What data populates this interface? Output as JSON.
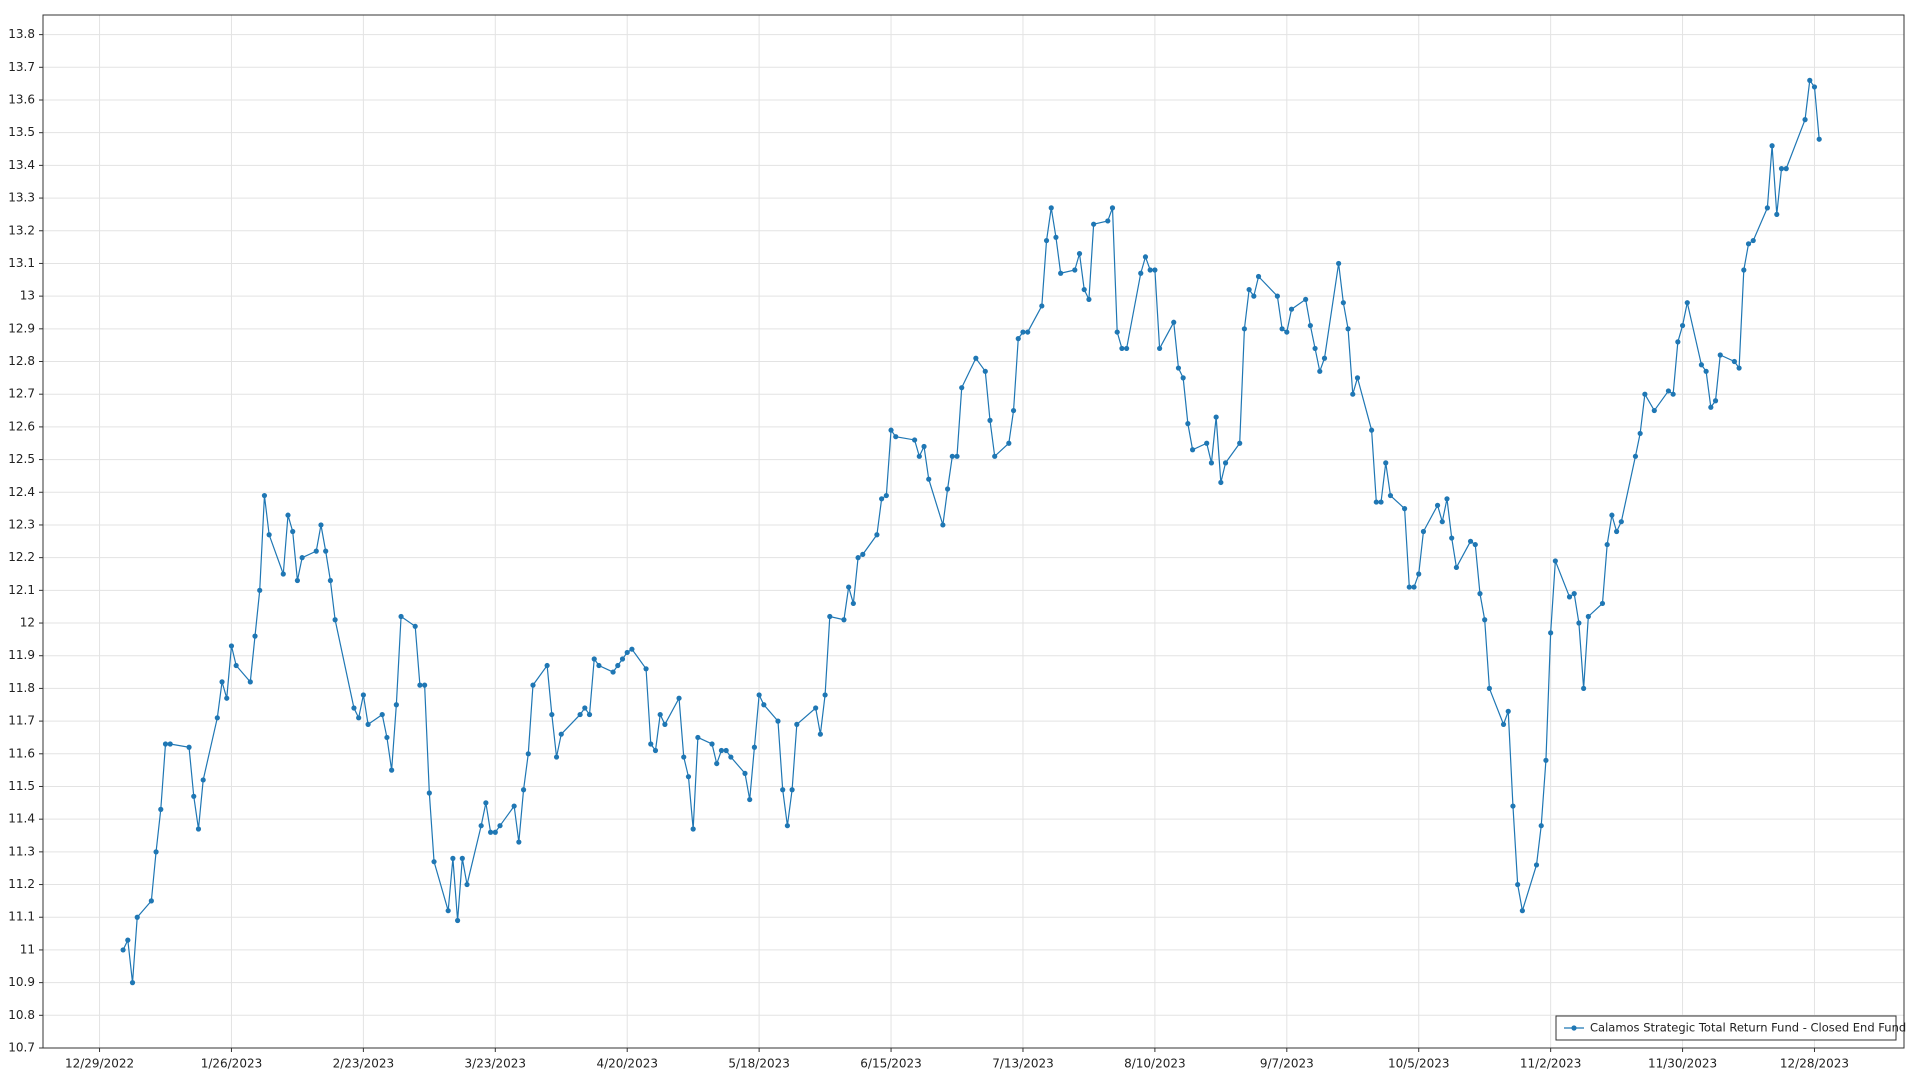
{
  "chart_data": {
    "type": "line",
    "x": [
      "1/3/2023",
      "1/4/2023",
      "1/5/2023",
      "1/6/2023",
      "1/9/2023",
      "1/10/2023",
      "1/11/2023",
      "1/12/2023",
      "1/13/2023",
      "1/17/2023",
      "1/18/2023",
      "1/19/2023",
      "1/20/2023",
      "1/23/2023",
      "1/24/2023",
      "1/25/2023",
      "1/26/2023",
      "1/27/2023",
      "1/30/2023",
      "1/31/2023",
      "2/1/2023",
      "2/2/2023",
      "2/3/2023",
      "2/6/2023",
      "2/7/2023",
      "2/8/2023",
      "2/9/2023",
      "2/10/2023",
      "2/13/2023",
      "2/14/2023",
      "2/15/2023",
      "2/16/2023",
      "2/17/2023",
      "2/21/2023",
      "2/22/2023",
      "2/23/2023",
      "2/24/2023",
      "2/27/2023",
      "2/28/2023",
      "3/1/2023",
      "3/2/2023",
      "3/3/2023",
      "3/6/2023",
      "3/7/2023",
      "3/8/2023",
      "3/9/2023",
      "3/10/2023",
      "3/13/2023",
      "3/14/2023",
      "3/15/2023",
      "3/16/2023",
      "3/17/2023",
      "3/20/2023",
      "3/21/2023",
      "3/22/2023",
      "3/23/2023",
      "3/24/2023",
      "3/27/2023",
      "3/28/2023",
      "3/29/2023",
      "3/30/2023",
      "3/31/2023",
      "4/3/2023",
      "4/4/2023",
      "4/5/2023",
      "4/6/2023",
      "4/10/2023",
      "4/11/2023",
      "4/12/2023",
      "4/13/2023",
      "4/14/2023",
      "4/17/2023",
      "4/18/2023",
      "4/19/2023",
      "4/20/2023",
      "4/21/2023",
      "4/24/2023",
      "4/25/2023",
      "4/26/2023",
      "4/27/2023",
      "4/28/2023",
      "5/1/2023",
      "5/2/2023",
      "5/3/2023",
      "5/4/2023",
      "5/5/2023",
      "5/8/2023",
      "5/9/2023",
      "5/10/2023",
      "5/11/2023",
      "5/12/2023",
      "5/15/2023",
      "5/16/2023",
      "5/17/2023",
      "5/18/2023",
      "5/19/2023",
      "5/22/2023",
      "5/23/2023",
      "5/24/2023",
      "5/25/2023",
      "5/26/2023",
      "5/30/2023",
      "5/31/2023",
      "6/1/2023",
      "6/2/2023",
      "6/5/2023",
      "6/6/2023",
      "6/7/2023",
      "6/8/2023",
      "6/9/2023",
      "6/12/2023",
      "6/13/2023",
      "6/14/2023",
      "6/15/2023",
      "6/16/2023",
      "6/20/2023",
      "6/21/2023",
      "6/22/2023",
      "6/23/2023",
      "6/26/2023",
      "6/27/2023",
      "6/28/2023",
      "6/29/2023",
      "6/30/2023",
      "7/3/2023",
      "7/5/2023",
      "7/6/2023",
      "7/7/2023",
      "7/10/2023",
      "7/11/2023",
      "7/12/2023",
      "7/13/2023",
      "7/14/2023",
      "7/17/2023",
      "7/18/2023",
      "7/19/2023",
      "7/20/2023",
      "7/21/2023",
      "7/24/2023",
      "7/25/2023",
      "7/26/2023",
      "7/27/2023",
      "7/28/2023",
      "7/31/2023",
      "8/1/2023",
      "8/2/2023",
      "8/3/2023",
      "8/4/2023",
      "8/7/2023",
      "8/8/2023",
      "8/9/2023",
      "8/10/2023",
      "8/11/2023",
      "8/14/2023",
      "8/15/2023",
      "8/16/2023",
      "8/17/2023",
      "8/18/2023",
      "8/21/2023",
      "8/22/2023",
      "8/23/2023",
      "8/24/2023",
      "8/25/2023",
      "8/28/2023",
      "8/29/2023",
      "8/30/2023",
      "8/31/2023",
      "9/1/2023",
      "9/5/2023",
      "9/6/2023",
      "9/7/2023",
      "9/8/2023",
      "9/11/2023",
      "9/12/2023",
      "9/13/2023",
      "9/14/2023",
      "9/15/2023",
      "9/18/2023",
      "9/19/2023",
      "9/20/2023",
      "9/21/2023",
      "9/22/2023",
      "9/25/2023",
      "9/26/2023",
      "9/27/2023",
      "9/28/2023",
      "9/29/2023",
      "10/2/2023",
      "10/3/2023",
      "10/4/2023",
      "10/5/2023",
      "10/6/2023",
      "10/9/2023",
      "10/10/2023",
      "10/11/2023",
      "10/12/2023",
      "10/13/2023",
      "10/16/2023",
      "10/17/2023",
      "10/18/2023",
      "10/19/2023",
      "10/20/2023",
      "10/23/2023",
      "10/24/2023",
      "10/25/2023",
      "10/26/2023",
      "10/27/2023",
      "10/30/2023",
      "10/31/2023",
      "11/1/2023",
      "11/2/2023",
      "11/3/2023",
      "11/6/2023",
      "11/7/2023",
      "11/8/2023",
      "11/9/2023",
      "11/10/2023",
      "11/13/2023",
      "11/14/2023",
      "11/15/2023",
      "11/16/2023",
      "11/17/2023",
      "11/20/2023",
      "11/21/2023",
      "11/22/2023",
      "11/24/2023",
      "11/27/2023",
      "11/28/2023",
      "11/29/2023",
      "11/30/2023",
      "12/1/2023",
      "12/4/2023",
      "12/5/2023",
      "12/6/2023",
      "12/7/2023",
      "12/8/2023",
      "12/11/2023",
      "12/12/2023",
      "12/13/2023",
      "12/14/2023",
      "12/15/2023",
      "12/18/2023",
      "12/19/2023",
      "12/20/2023",
      "12/21/2023",
      "12/22/2023",
      "12/26/2023",
      "12/27/2023",
      "12/28/2023",
      "12/29/2023"
    ],
    "series": [
      {
        "name": "Calamos Strategic Total Return Fund - Closed End Fund",
        "color": "#1f77b4",
        "values": [
          11.0,
          11.03,
          10.9,
          11.1,
          11.15,
          11.3,
          11.43,
          11.63,
          11.63,
          11.62,
          11.47,
          11.37,
          11.52,
          11.71,
          11.82,
          11.77,
          11.93,
          11.87,
          11.82,
          11.96,
          12.1,
          12.39,
          12.27,
          12.15,
          12.33,
          12.28,
          12.13,
          12.2,
          12.22,
          12.3,
          12.22,
          12.13,
          12.01,
          11.74,
          11.71,
          11.78,
          11.69,
          11.72,
          11.65,
          11.55,
          11.75,
          12.02,
          11.99,
          11.81,
          11.81,
          11.48,
          11.27,
          11.12,
          11.28,
          11.09,
          11.28,
          11.2,
          11.38,
          11.45,
          11.36,
          11.36,
          11.38,
          11.44,
          11.33,
          11.49,
          11.6,
          11.81,
          11.87,
          11.72,
          11.59,
          11.66,
          11.72,
          11.74,
          11.72,
          11.89,
          11.87,
          11.85,
          11.87,
          11.89,
          11.91,
          11.92,
          11.86,
          11.63,
          11.61,
          11.72,
          11.69,
          11.77,
          11.59,
          11.53,
          11.37,
          11.65,
          11.63,
          11.57,
          11.61,
          11.61,
          11.59,
          11.54,
          11.46,
          11.62,
          11.78,
          11.75,
          11.7,
          11.49,
          11.38,
          11.49,
          11.69,
          11.74,
          11.66,
          11.78,
          12.02,
          12.01,
          12.11,
          12.06,
          12.2,
          12.21,
          12.27,
          12.38,
          12.39,
          12.59,
          12.57,
          12.56,
          12.51,
          12.54,
          12.44,
          12.3,
          12.41,
          12.51,
          12.51,
          12.72,
          12.81,
          12.77,
          12.62,
          12.51,
          12.55,
          12.65,
          12.87,
          12.89,
          12.89,
          12.97,
          13.17,
          13.27,
          13.18,
          13.07,
          13.08,
          13.13,
          13.02,
          12.99,
          13.22,
          13.23,
          13.27,
          12.89,
          12.84,
          12.84,
          13.07,
          13.12,
          13.08,
          13.08,
          12.84,
          12.92,
          12.78,
          12.75,
          12.61,
          12.53,
          12.55,
          12.49,
          12.63,
          12.43,
          12.49,
          12.55,
          12.9,
          13.02,
          13.0,
          13.06,
          13.0,
          12.9,
          12.89,
          12.96,
          12.99,
          12.91,
          12.84,
          12.77,
          12.81,
          13.1,
          12.98,
          12.9,
          12.7,
          12.75,
          12.59,
          12.37,
          12.37,
          12.49,
          12.39,
          12.35,
          12.11,
          12.11,
          12.15,
          12.28,
          12.36,
          12.31,
          12.38,
          12.26,
          12.17,
          12.25,
          12.24,
          12.09,
          12.01,
          11.8,
          11.69,
          11.73,
          11.44,
          11.2,
          11.12,
          11.26,
          11.38,
          11.58,
          11.97,
          12.19,
          12.08,
          12.09,
          12.0,
          11.8,
          12.02,
          12.06,
          12.24,
          12.33,
          12.28,
          12.31,
          12.51,
          12.58,
          12.7,
          12.65,
          12.71,
          12.7,
          12.86,
          12.91,
          12.98,
          12.79,
          12.77,
          12.66,
          12.68,
          12.82,
          12.8,
          12.78,
          13.08,
          13.16,
          13.17,
          13.27,
          13.46,
          13.25,
          13.39,
          13.39,
          13.54,
          13.66,
          13.64,
          13.48
        ]
      }
    ],
    "xlim": [
      "12/17/2022",
      "1/16/2024"
    ],
    "xticks": [
      "12/29/2022",
      "1/26/2023",
      "2/23/2023",
      "3/23/2023",
      "4/20/2023",
      "5/18/2023",
      "6/15/2023",
      "7/13/2023",
      "8/10/2023",
      "9/7/2023",
      "10/5/2023",
      "11/2/2023",
      "11/30/2023",
      "12/28/2023"
    ],
    "ylim": [
      10.7,
      13.86
    ],
    "yticks": [
      10.7,
      10.8,
      10.9,
      11,
      11.1,
      11.2,
      11.3,
      11.4,
      11.5,
      11.6,
      11.7,
      11.8,
      11.9,
      12,
      12.1,
      12.2,
      12.3,
      12.4,
      12.5,
      12.6,
      12.7,
      12.8,
      12.9,
      13,
      13.1,
      13.2,
      13.3,
      13.4,
      13.5,
      13.6,
      13.7,
      13.8
    ],
    "grid": true,
    "legend": "lower right"
  }
}
